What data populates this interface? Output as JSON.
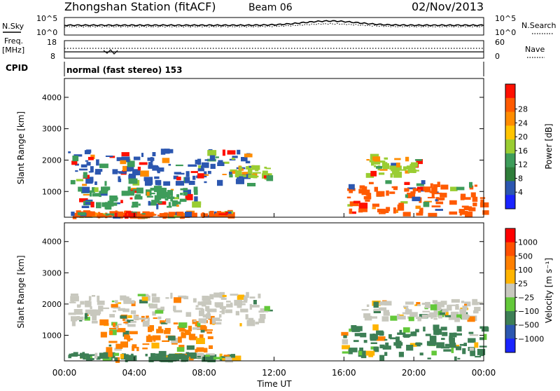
{
  "header": {
    "title": "Zhongshan Station (fitACF)",
    "beam": "Beam 06",
    "date": "02/Nov/2013",
    "mode": "normal (fast stereo) 153"
  },
  "summary_panels": {
    "nsky_label": "N.Sky",
    "nsearch_label": "N.Search",
    "nsky_ticks": [
      "10^5",
      "10^0"
    ],
    "freq_label_1": "Freq.",
    "freq_label_2": "[MHz]",
    "freq_ticks": [
      "18",
      "8"
    ],
    "nave_label": "Nave",
    "nave_ticks": [
      "60",
      "0"
    ],
    "cpid_label": "CPID"
  },
  "chart_data": [
    {
      "type": "heatmap",
      "parameter": "Power",
      "ylabel": "Slant Range [km]",
      "ylim": [
        180,
        4600
      ],
      "yticks": [
        "1000",
        "2000",
        "3000",
        "4000"
      ],
      "colorbar_label": "Power [dB]",
      "colorbar_ticks": [
        "4",
        "8",
        "12",
        "16",
        "20",
        "24",
        "28"
      ],
      "colorbar_colors": [
        "#1a24ff",
        "#2c57b0",
        "#2f7d3a",
        "#3e9c5a",
        "#9acd32",
        "#ffc400",
        "#ff8c00",
        "#ff5a00",
        "#ff1000"
      ],
      "x": [
        "00:00",
        "04:00",
        "08:00",
        "12:00",
        "16:00",
        "20:00",
        "00:00"
      ],
      "echo_regions": [
        {
          "t_start": 0.3,
          "t_end": 9.6,
          "range_start": 200,
          "range_end": 320,
          "level": "high"
        },
        {
          "t_start": 0.6,
          "t_end": 7.6,
          "range_start": 500,
          "range_end": 1100,
          "level": "medium-high"
        },
        {
          "t_start": 0.2,
          "t_end": 10.5,
          "range_start": 1200,
          "range_end": 2300,
          "level": "low"
        },
        {
          "t_start": 9.4,
          "t_end": 11.6,
          "range_start": 1400,
          "range_end": 1800,
          "level": "medium"
        },
        {
          "t_start": 16.0,
          "t_end": 24.0,
          "range_start": 250,
          "range_end": 1300,
          "level": "high"
        },
        {
          "t_start": 17.2,
          "t_end": 20.2,
          "range_start": 1500,
          "range_end": 2100,
          "level": "medium"
        }
      ]
    },
    {
      "type": "heatmap",
      "parameter": "Velocity",
      "ylabel": "Slant Range [km]",
      "ylim": [
        180,
        4600
      ],
      "yticks": [
        "1000",
        "2000",
        "3000",
        "4000"
      ],
      "colorbar_label": "Velocity [m s⁻¹]",
      "colorbar_ticks": [
        "1000",
        "500",
        "100",
        "25",
        "−25",
        "−100",
        "−500",
        "−1000"
      ],
      "colorbar_colors": [
        "#1a24ff",
        "#2c57b0",
        "#3d7f55",
        "#63c83a",
        "#c8c8be",
        "#ffb400",
        "#ff8000",
        "#ff5000",
        "#ff0000"
      ],
      "x": [
        "00:00",
        "04:00",
        "08:00",
        "12:00",
        "16:00",
        "20:00",
        "00:00"
      ],
      "xlabel": "Time UT",
      "echo_regions": [
        {
          "t_start": 0.2,
          "t_end": 9.6,
          "range_start": 200,
          "range_end": 400,
          "level": "toward"
        },
        {
          "t_start": 2.0,
          "t_end": 8.6,
          "range_start": 500,
          "range_end": 1600,
          "level": "away"
        },
        {
          "t_start": 0.2,
          "t_end": 11.6,
          "range_start": 1300,
          "range_end": 2300,
          "level": "near-zero"
        },
        {
          "t_start": 15.8,
          "t_end": 24.0,
          "range_start": 250,
          "range_end": 1300,
          "level": "toward"
        },
        {
          "t_start": 17.0,
          "t_end": 24.0,
          "range_start": 1500,
          "range_end": 2100,
          "level": "near-zero"
        }
      ]
    }
  ]
}
